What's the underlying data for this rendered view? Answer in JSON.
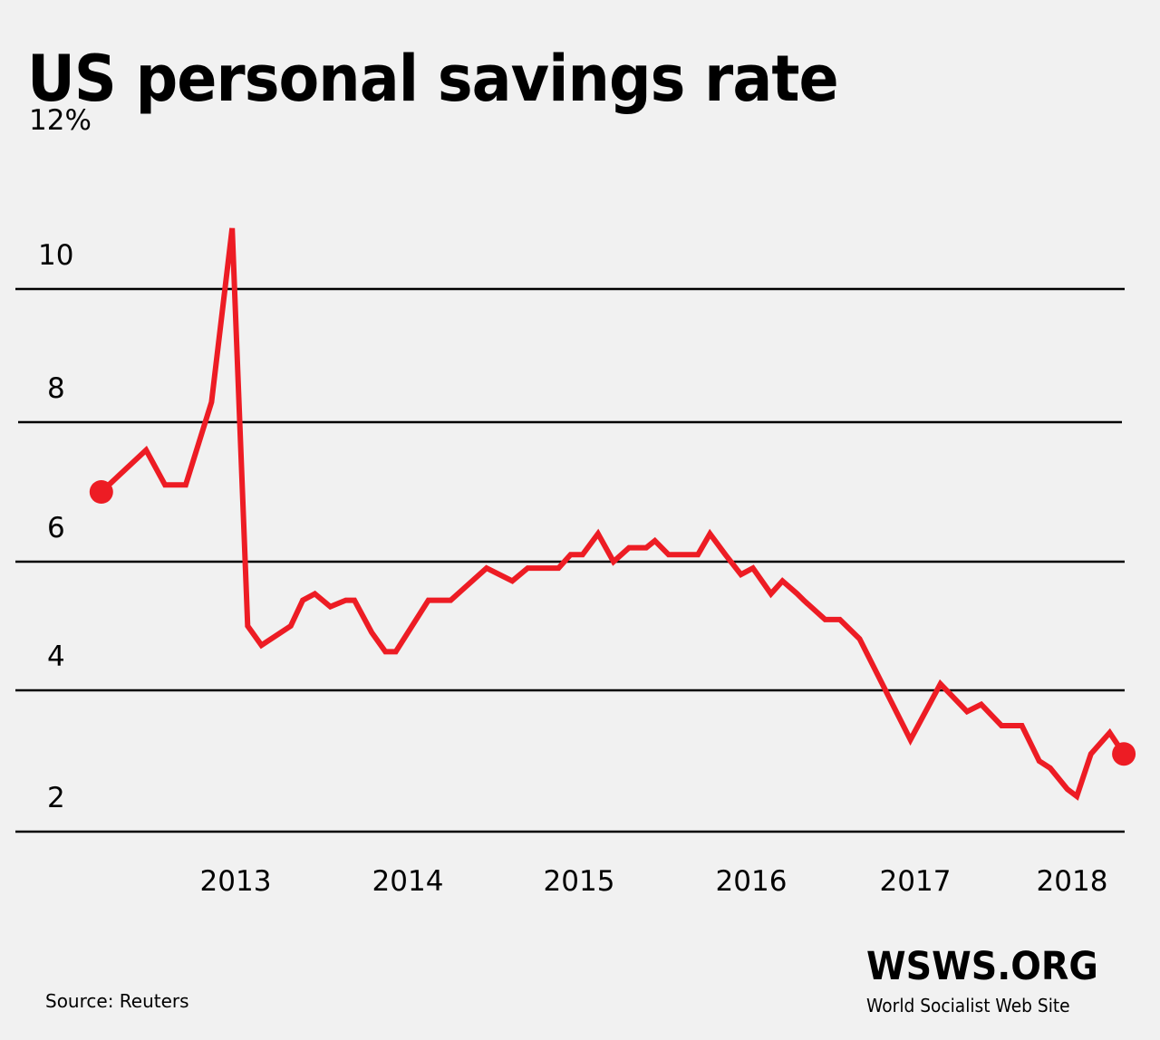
{
  "colors": {
    "background": "#f1f1f1",
    "line": "#ed1c24",
    "gridline": "#000000",
    "text": "#000000"
  },
  "footer": {
    "source": "Source: Reuters",
    "logo": "WSWS.ORG",
    "logo_subtitle": "World Socialist Web Site"
  },
  "chart_data": {
    "type": "line",
    "title": "US personal savings rate",
    "xlabel": "",
    "ylabel": "",
    "ylim": [
      2,
      12
    ],
    "y_ticks": [
      {
        "value": 12,
        "label": "12%"
      },
      {
        "value": 10,
        "label": "10"
      },
      {
        "value": 8,
        "label": "8"
      },
      {
        "value": 6,
        "label": "6"
      },
      {
        "value": 4,
        "label": "4"
      },
      {
        "value": 2,
        "label": "2"
      }
    ],
    "gridlines": [
      10,
      8,
      6,
      4,
      2
    ],
    "x_ticks": [
      {
        "value": 2013,
        "label": "2013"
      },
      {
        "value": 2014,
        "label": "2014"
      },
      {
        "value": 2015,
        "label": "2015"
      },
      {
        "value": 2016,
        "label": "2016"
      },
      {
        "value": 2017,
        "label": "2017"
      },
      {
        "value": 2018,
        "label": "2018"
      }
    ],
    "grid": true,
    "legend": "none",
    "end_markers": true,
    "series": [
      {
        "name": "US personal savings rate (%)",
        "points": [
          [
            2012.22,
            7.0
          ],
          [
            2012.48,
            7.6
          ],
          [
            2012.59,
            7.1
          ],
          [
            2012.71,
            7.1
          ],
          [
            2012.86,
            8.3
          ],
          [
            2012.98,
            10.9
          ],
          [
            2013.07,
            5.0
          ],
          [
            2013.15,
            4.7
          ],
          [
            2013.32,
            5.0
          ],
          [
            2013.39,
            5.4
          ],
          [
            2013.46,
            5.5
          ],
          [
            2013.55,
            5.3
          ],
          [
            2013.64,
            5.4
          ],
          [
            2013.69,
            5.4
          ],
          [
            2013.79,
            4.9
          ],
          [
            2013.87,
            4.6
          ],
          [
            2013.93,
            4.6
          ],
          [
            2014.12,
            5.4
          ],
          [
            2014.25,
            5.4
          ],
          [
            2014.46,
            5.9
          ],
          [
            2014.61,
            5.7
          ],
          [
            2014.7,
            5.9
          ],
          [
            2014.88,
            5.9
          ],
          [
            2014.95,
            6.1
          ],
          [
            2015.02,
            6.1
          ],
          [
            2015.11,
            6.4
          ],
          [
            2015.2,
            6.0
          ],
          [
            2015.29,
            6.2
          ],
          [
            2015.39,
            6.2
          ],
          [
            2015.44,
            6.3
          ],
          [
            2015.52,
            6.1
          ],
          [
            2015.69,
            6.1
          ],
          [
            2015.76,
            6.4
          ],
          [
            2015.85,
            6.1
          ],
          [
            2015.94,
            5.8
          ],
          [
            2016.01,
            5.9
          ],
          [
            2016.12,
            5.5
          ],
          [
            2016.19,
            5.7
          ],
          [
            2016.28,
            5.5
          ],
          [
            2016.32,
            5.4
          ],
          [
            2016.45,
            5.1
          ],
          [
            2016.54,
            5.1
          ],
          [
            2016.66,
            4.8
          ],
          [
            2016.97,
            3.3
          ],
          [
            2017.16,
            4.1
          ],
          [
            2017.33,
            3.7
          ],
          [
            2017.42,
            3.8
          ],
          [
            2017.55,
            3.5
          ],
          [
            2017.68,
            3.5
          ],
          [
            2017.79,
            3.0
          ],
          [
            2017.86,
            2.9
          ],
          [
            2017.97,
            2.6
          ],
          [
            2018.03,
            2.5
          ],
          [
            2018.12,
            3.1
          ],
          [
            2018.24,
            3.4
          ],
          [
            2018.33,
            3.1
          ]
        ]
      }
    ]
  }
}
